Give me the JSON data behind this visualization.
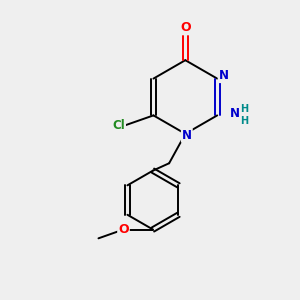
{
  "background_color": "#efefef",
  "bond_color": "#000000",
  "atom_colors": {
    "O": "#ff0000",
    "N": "#0000cc",
    "Cl": "#228b22",
    "NH2_N": "#0000cc",
    "NH2_H": "#008b8b",
    "C": "#000000",
    "O_methoxy": "#ff0000"
  },
  "figsize": [
    3.0,
    3.0
  ],
  "dpi": 100
}
